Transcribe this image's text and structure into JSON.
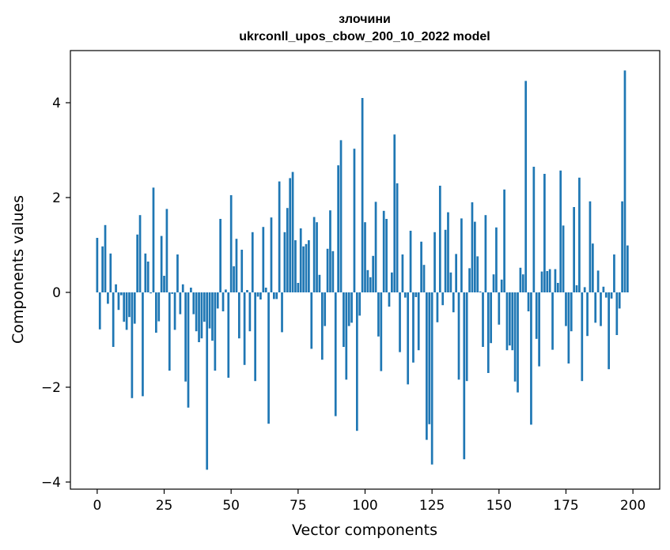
{
  "chart_data": {
    "type": "bar",
    "title": "злочини",
    "subtitle": "ukrconll_upos_cbow_200_10_2022 model",
    "xlabel": "Vector components",
    "ylabel": "Components values",
    "xlim": [
      -10,
      210
    ],
    "ylim": [
      -4.15,
      5.1
    ],
    "xticks": [
      0,
      25,
      50,
      75,
      100,
      125,
      150,
      175,
      200
    ],
    "yticks": [
      -4,
      -2,
      0,
      2,
      4
    ],
    "ytick_labels": [
      "−4",
      "−2",
      "0",
      "2",
      "4"
    ],
    "bar_color": "#1f77b4",
    "grid": false,
    "values": [
      1.15,
      -0.78,
      0.97,
      1.42,
      -0.24,
      0.82,
      -1.15,
      0.17,
      -0.37,
      -0.06,
      -0.62,
      -0.79,
      -0.52,
      -2.23,
      -0.66,
      1.22,
      1.63,
      -2.19,
      0.82,
      0.65,
      -0.02,
      2.21,
      -0.85,
      -0.61,
      1.19,
      0.35,
      1.76,
      -1.65,
      -0.03,
      -0.79,
      0.8,
      -0.46,
      0.17,
      -1.88,
      -2.43,
      0.1,
      -0.46,
      -0.82,
      -1.05,
      -0.97,
      -0.62,
      -3.74,
      -0.76,
      -1.02,
      -1.65,
      -0.34,
      1.55,
      -0.4,
      0.06,
      -1.8,
      2.05,
      0.55,
      1.13,
      -0.97,
      0.9,
      -1.53,
      0.05,
      -0.82,
      1.27,
      -1.87,
      -0.09,
      -0.15,
      1.38,
      0.1,
      -2.77,
      1.58,
      -0.14,
      -0.14,
      2.34,
      -0.84,
      1.27,
      1.78,
      2.41,
      2.54,
      1.1,
      0.2,
      1.35,
      0.97,
      1.02,
      1.1,
      -1.19,
      1.59,
      1.48,
      0.37,
      -1.42,
      -0.71,
      0.92,
      1.73,
      0.87,
      -2.61,
      2.68,
      3.21,
      -1.15,
      -1.84,
      -0.71,
      -0.64,
      3.03,
      -2.92,
      -0.49,
      4.1,
      1.48,
      0.47,
      0.32,
      0.77,
      1.91,
      -0.93,
      -1.66,
      1.72,
      1.55,
      -0.3,
      0.42,
      3.33,
      2.3,
      -1.26,
      0.8,
      -0.11,
      -1.94,
      1.3,
      -1.48,
      -0.1,
      -1.22,
      1.07,
      0.58,
      -3.11,
      -2.78,
      -3.63,
      1.27,
      -0.63,
      2.25,
      -0.27,
      1.32,
      1.69,
      0.42,
      -0.42,
      0.81,
      -1.84,
      1.56,
      -3.52,
      -1.87,
      0.51,
      1.9,
      1.49,
      0.76,
      0.02,
      -1.15,
      1.63,
      -1.7,
      -1.07,
      0.38,
      1.37,
      -0.68,
      0.27,
      2.17,
      -1.22,
      -1.12,
      -1.22,
      -1.88,
      -2.11,
      0.52,
      0.38,
      4.46,
      -0.4,
      -2.79,
      2.65,
      -0.98,
      -1.56,
      0.44,
      2.5,
      0.45,
      0.49,
      -1.21,
      0.49,
      0.2,
      2.57,
      1.41,
      -0.71,
      -1.5,
      -0.82,
      1.8,
      0.15,
      2.42,
      -1.87,
      0.11,
      -0.92,
      1.92,
      1.03,
      -0.64,
      0.46,
      -0.71,
      0.12,
      -0.11,
      -1.62,
      -0.13,
      0.8,
      -0.9,
      -0.34,
      1.92,
      4.68,
      0.99
    ]
  }
}
